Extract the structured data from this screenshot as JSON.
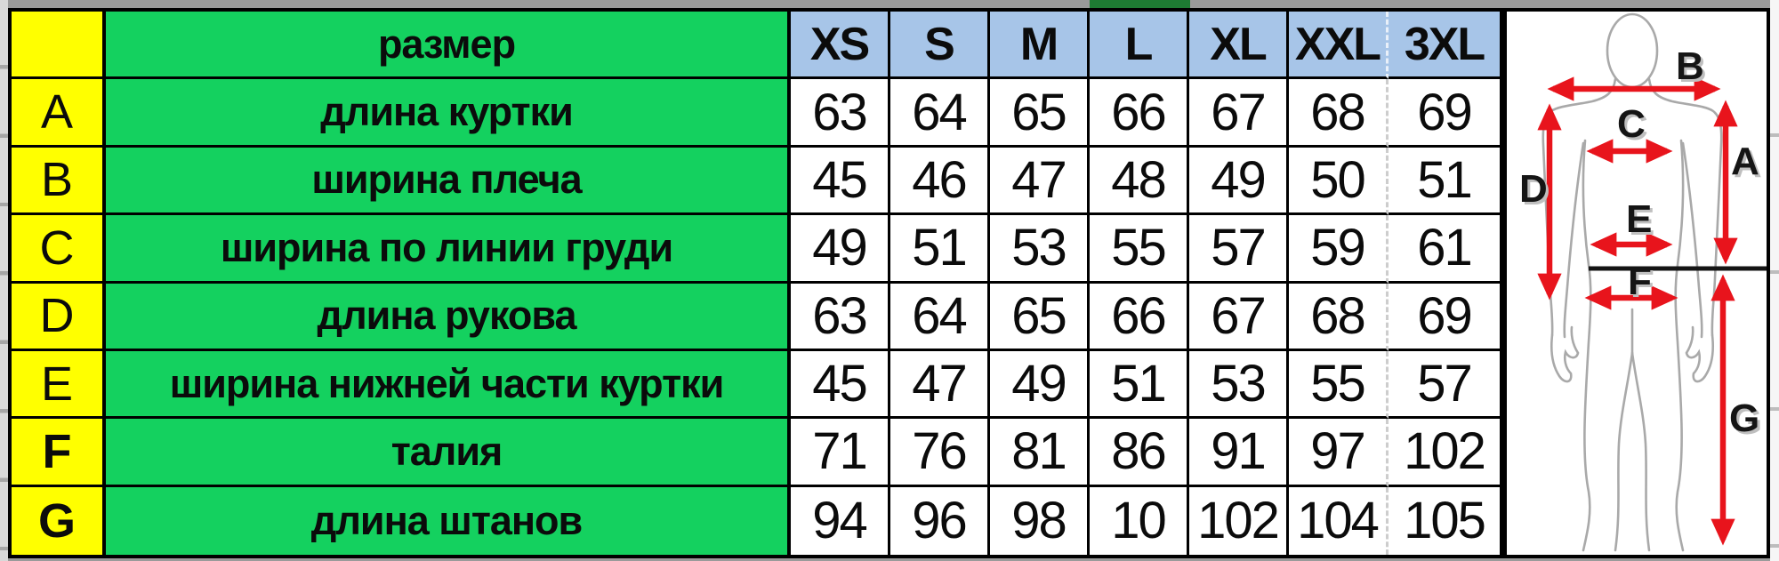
{
  "chart_data": {
    "type": "table",
    "corner_header": "размер",
    "columns": [
      "XS",
      "S",
      "M",
      "L",
      "XL",
      "XXL",
      "3XL"
    ],
    "rows": [
      {
        "letter": "A",
        "bold_letter": false,
        "label": "длина куртки",
        "values": [
          "63",
          "64",
          "65",
          "66",
          "67",
          "68",
          "69"
        ]
      },
      {
        "letter": "B",
        "bold_letter": false,
        "label": "ширина плеча",
        "values": [
          "45",
          "46",
          "47",
          "48",
          "49",
          "50",
          "51"
        ]
      },
      {
        "letter": "C",
        "bold_letter": false,
        "label": "ширина по линии груди",
        "values": [
          "49",
          "51",
          "53",
          "55",
          "57",
          "59",
          "61"
        ]
      },
      {
        "letter": "D",
        "bold_letter": false,
        "label": "длина рукова",
        "values": [
          "63",
          "64",
          "65",
          "66",
          "67",
          "68",
          "69"
        ]
      },
      {
        "letter": "E",
        "bold_letter": false,
        "label": "ширина нижней части куртки",
        "values": [
          "45",
          "47",
          "49",
          "51",
          "53",
          "55",
          "57"
        ]
      },
      {
        "letter": "F",
        "bold_letter": true,
        "label": "талия",
        "values": [
          "71",
          "76",
          "81",
          "86",
          "91",
          "97",
          "102"
        ]
      },
      {
        "letter": "G",
        "bold_letter": true,
        "label": "длина штанов",
        "values": [
          "94",
          "96",
          "98",
          "10",
          "102",
          "104",
          "105"
        ]
      }
    ]
  },
  "figure": {
    "arrow_labels": [
      "A",
      "B",
      "C",
      "D",
      "E",
      "F",
      "G"
    ]
  },
  "colors": {
    "yellow": "#ffff00",
    "green": "#14d15f",
    "header-blue": "#a7c5e8",
    "dark-green": "#1e7b33",
    "red": "#e8141c",
    "outline-gray": "#a9a9a9"
  }
}
